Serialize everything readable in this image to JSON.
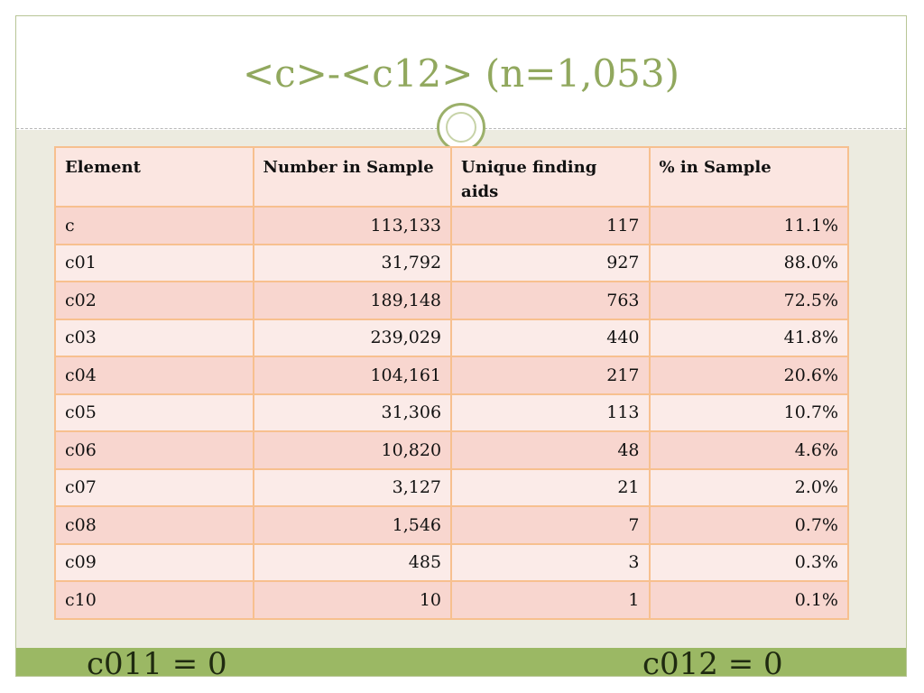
{
  "slide": {
    "title": "<c>-<c12> (n=1,053)"
  },
  "table": {
    "headers": [
      "Element",
      "Number in Sample",
      "Unique finding aids",
      "% in Sample"
    ],
    "rows": [
      [
        "c",
        "113,133",
        "117",
        "11.1%"
      ],
      [
        "c01",
        "31,792",
        "927",
        "88.0%"
      ],
      [
        "c02",
        "189,148",
        "763",
        "72.5%"
      ],
      [
        "c03",
        "239,029",
        "440",
        "41.8%"
      ],
      [
        "c04",
        "104,161",
        "217",
        "20.6%"
      ],
      [
        "c05",
        "31,306",
        "113",
        "10.7%"
      ],
      [
        "c06",
        "10,820",
        "48",
        "4.6%"
      ],
      [
        "c07",
        "3,127",
        "21",
        "2.0%"
      ],
      [
        "c08",
        "1,546",
        "7",
        "0.7%"
      ],
      [
        "c09",
        "485",
        "3",
        "0.3%"
      ],
      [
        "c10",
        "10",
        "1",
        "0.1%"
      ]
    ]
  },
  "footer": {
    "left_note": "c011 = 0",
    "right_note": "c012 = 0"
  },
  "colors": {
    "title": "#91a85e",
    "accent_bar": "#9bb864",
    "table_border": "#f7c08f",
    "row_dark": "#f8d6cf",
    "row_light": "#fbebe8",
    "background": "#ecebe0"
  }
}
